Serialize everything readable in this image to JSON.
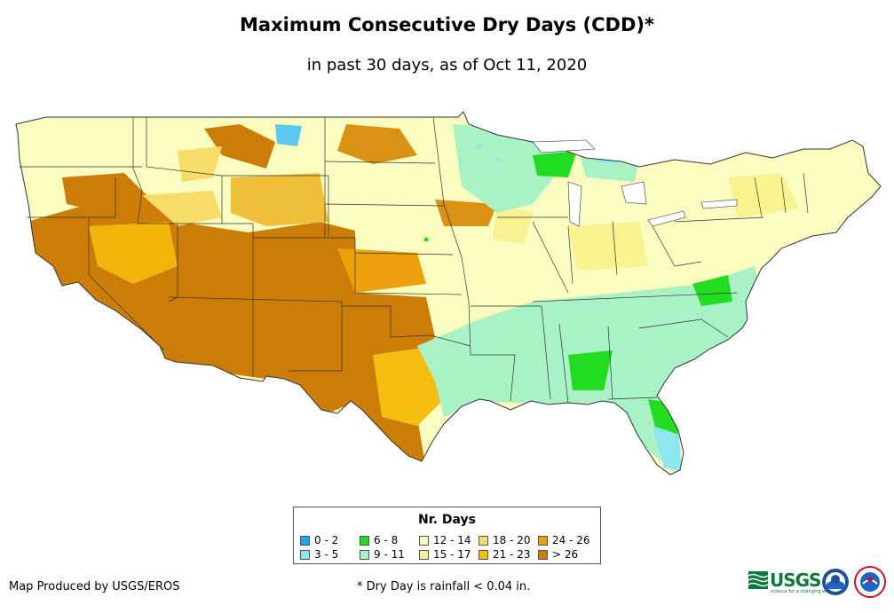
{
  "title": "Maximum Consecutive Dry Days (CDD)*",
  "subtitle": "in past 30 days, as of Oct 11, 2020",
  "legend": {
    "title": "Nr. Days",
    "items": [
      {
        "label": "0 - 2",
        "color": "#1ea7e8"
      },
      {
        "label": "3 - 5",
        "color": "#8ee6f0"
      },
      {
        "label": "6 - 8",
        "color": "#22dc22"
      },
      {
        "label": "9 - 11",
        "color": "#a8f2c6"
      },
      {
        "label": "12 - 14",
        "color": "#fafcc0"
      },
      {
        "label": "15 - 17",
        "color": "#f9f290"
      },
      {
        "label": "18 - 20",
        "color": "#f7dc6a"
      },
      {
        "label": "21 - 23",
        "color": "#f5bd0f"
      },
      {
        "label": "24 - 26",
        "color": "#eda00e"
      },
      {
        "label": "> 26",
        "color": "#cc7d08"
      }
    ]
  },
  "credit": "Map Produced by USGS/EROS",
  "footnote": "* Dry Day is rainfall < 0.04 in.",
  "logos": {
    "usgs": "USGS",
    "usgs_tagline": "science for a changing world"
  }
}
